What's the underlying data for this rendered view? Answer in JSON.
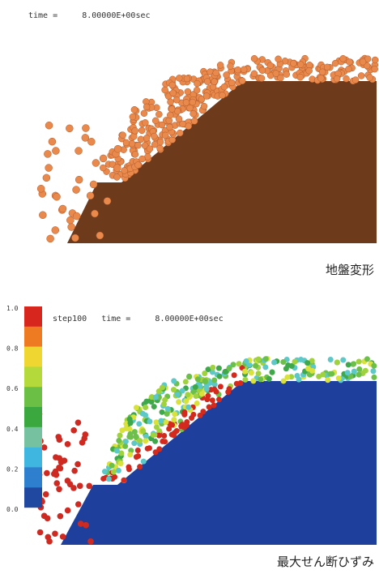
{
  "top_panel": {
    "header": "time =     8.00000E+00sec",
    "caption": "地盤変形"
  },
  "bottom_panel": {
    "header": "step100   time =     8.00000E+00sec",
    "caption": "最大せん断ひずみ",
    "colorbar_labels": [
      "1.0",
      "0.8",
      "0.6",
      "0.4",
      "0.2",
      "0.0"
    ]
  }
}
